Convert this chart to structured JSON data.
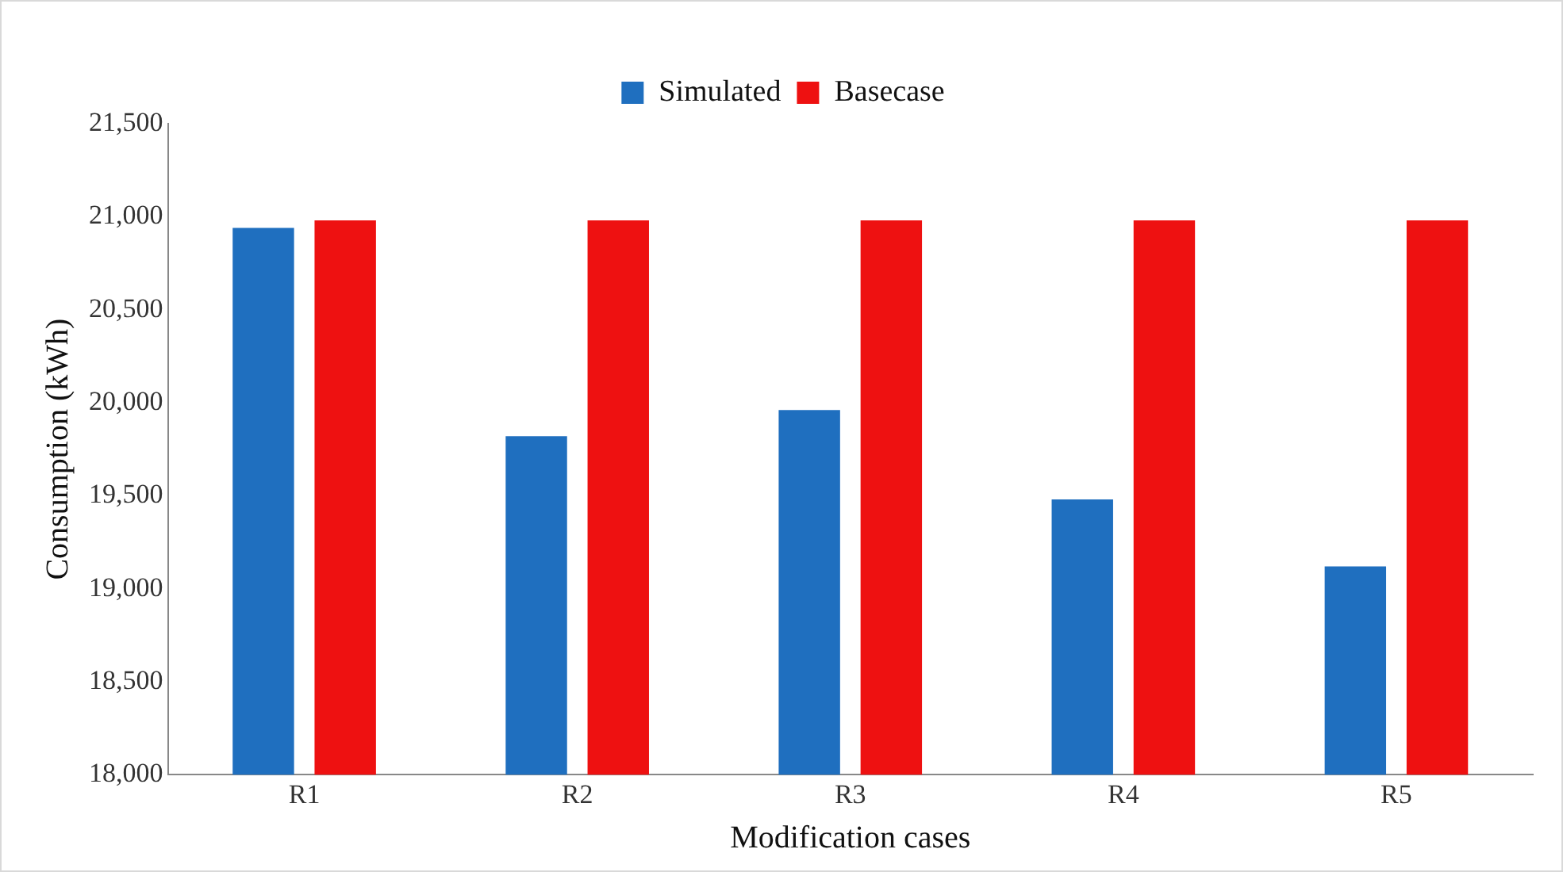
{
  "chart_data": {
    "type": "bar",
    "xlabel": "Modification cases",
    "ylabel": "Consumption (kWh)",
    "categories": [
      "R1",
      "R2",
      "R3",
      "R4",
      "R5"
    ],
    "series": [
      {
        "name": "Simulated",
        "color": "#1f6fbf",
        "values": [
          20940,
          19820,
          19960,
          19480,
          19120
        ]
      },
      {
        "name": "Basecase",
        "color": "#ee1111",
        "values": [
          20980,
          20980,
          20980,
          20980,
          20980
        ]
      }
    ],
    "ylim": [
      18000,
      21500
    ],
    "yticks": [
      {
        "value": 18000,
        "label": "18,000"
      },
      {
        "value": 18500,
        "label": "18,500"
      },
      {
        "value": 19000,
        "label": "19,000"
      },
      {
        "value": 19500,
        "label": "19,500"
      },
      {
        "value": 20000,
        "label": "20,000"
      },
      {
        "value": 20500,
        "label": "20,500"
      },
      {
        "value": 21000,
        "label": "21,000"
      },
      {
        "value": 21500,
        "label": "21,500"
      }
    ],
    "grid": false,
    "legend": "top"
  }
}
